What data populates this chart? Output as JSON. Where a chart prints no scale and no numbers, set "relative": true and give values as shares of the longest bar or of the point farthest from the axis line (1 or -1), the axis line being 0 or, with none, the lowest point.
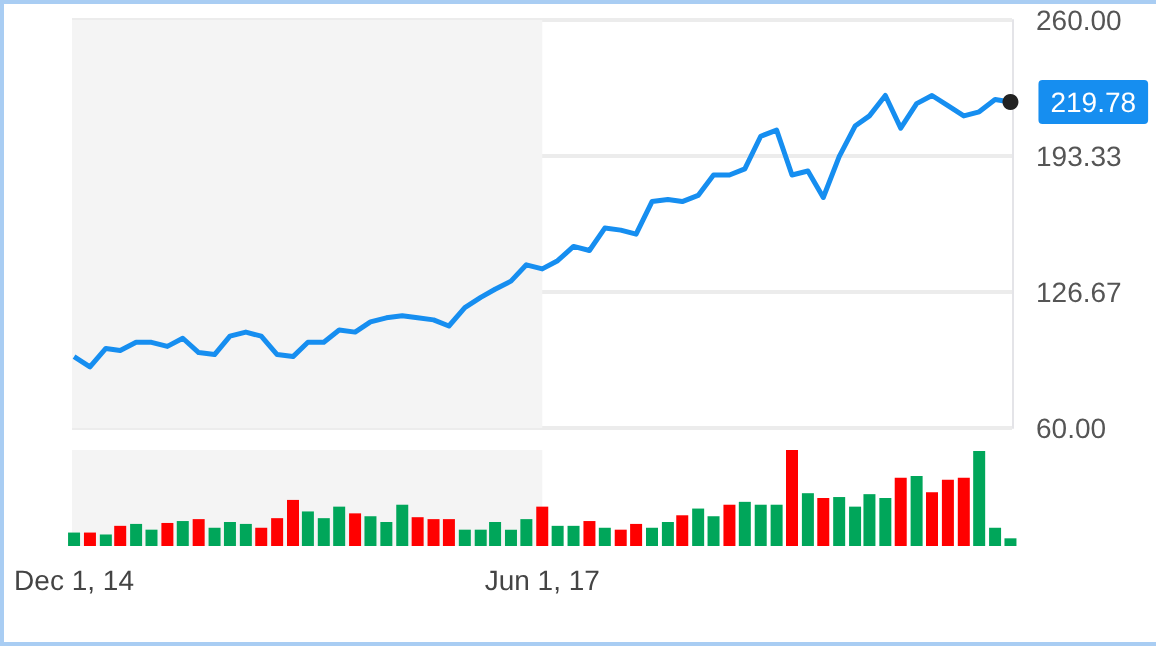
{
  "chart_data": [
    {
      "type": "line",
      "x": [
        "2014-12",
        "2015-01",
        "2015-02",
        "2015-03",
        "2015-04",
        "2015-05",
        "2015-06",
        "2015-07",
        "2015-08",
        "2015-09",
        "2015-10",
        "2015-11",
        "2015-12",
        "2016-01",
        "2016-02",
        "2016-03",
        "2016-04",
        "2016-05",
        "2016-06",
        "2016-07",
        "2016-08",
        "2016-09",
        "2016-10",
        "2016-11",
        "2016-12",
        "2017-01",
        "2017-02",
        "2017-03",
        "2017-04",
        "2017-05",
        "2017-06",
        "2017-07",
        "2017-08",
        "2017-09",
        "2017-10",
        "2017-11",
        "2017-12",
        "2018-01",
        "2018-02",
        "2018-03",
        "2018-04",
        "2018-05",
        "2018-06",
        "2018-07",
        "2018-08",
        "2018-09",
        "2018-10",
        "2018-11",
        "2018-12",
        "2019-01",
        "2019-02",
        "2019-03",
        "2019-04",
        "2019-05",
        "2019-06",
        "2019-07",
        "2019-08",
        "2019-09",
        "2019-10",
        "2019-11",
        "2019-12"
      ],
      "series": [
        {
          "color": "#168ef0",
          "values": [
            95,
            90,
            99,
            98,
            102,
            102,
            100,
            104,
            97,
            96,
            105,
            107,
            105,
            96,
            95,
            102,
            102,
            108,
            107,
            112,
            114,
            115,
            114,
            113,
            110,
            119,
            124,
            128,
            132,
            140,
            138,
            142,
            149,
            147,
            158,
            157,
            155,
            171,
            172,
            171,
            174,
            184,
            184,
            187,
            203,
            206,
            184,
            186,
            173,
            193,
            208,
            213,
            223,
            207,
            219,
            223,
            218,
            213,
            215,
            221,
            219.78
          ]
        }
      ],
      "xlim": [
        "2014-11-27",
        "2019-12-04"
      ],
      "ylim": [
        60,
        260
      ],
      "yticks": [
        {
          "value": 60,
          "label": "60.00"
        },
        {
          "value": 126.67,
          "label": "126.67"
        },
        {
          "value": 193.33,
          "label": "193.33"
        },
        {
          "value": 260,
          "label": "260.00"
        }
      ],
      "annotations": [
        {
          "text": "219.78",
          "x": "2019-12",
          "y": 219.78
        }
      ],
      "bands": [
        {
          "axis": "x",
          "from": "2014-11-27",
          "to": "2017-06-01",
          "color": "#f4f4f4"
        }
      ],
      "grid": "y",
      "marker": "none",
      "tick_labels": "y"
    },
    {
      "type": "bar",
      "relative": true,
      "x": [
        "2014-12",
        "2015-01",
        "2015-02",
        "2015-03",
        "2015-04",
        "2015-05",
        "2015-06",
        "2015-07",
        "2015-08",
        "2015-09",
        "2015-10",
        "2015-11",
        "2015-12",
        "2016-01",
        "2016-02",
        "2016-03",
        "2016-04",
        "2016-05",
        "2016-06",
        "2016-07",
        "2016-08",
        "2016-09",
        "2016-10",
        "2016-11",
        "2016-12",
        "2017-01",
        "2017-02",
        "2017-03",
        "2017-04",
        "2017-05",
        "2017-06",
        "2017-07",
        "2017-08",
        "2017-09",
        "2017-10",
        "2017-11",
        "2017-12",
        "2018-01",
        "2018-02",
        "2018-03",
        "2018-04",
        "2018-05",
        "2018-06",
        "2018-07",
        "2018-08",
        "2018-09",
        "2018-10",
        "2018-11",
        "2018-12",
        "2019-01",
        "2019-02",
        "2019-03",
        "2019-04",
        "2019-05",
        "2019-06",
        "2019-07",
        "2019-08",
        "2019-09",
        "2019-10",
        "2019-11",
        "2019-12"
      ],
      "series": [
        {
          "values": [
            0.14,
            0.14,
            0.12,
            0.21,
            0.23,
            0.17,
            0.24,
            0.26,
            0.28,
            0.19,
            0.25,
            0.23,
            0.19,
            0.29,
            0.48,
            0.36,
            0.29,
            0.41,
            0.34,
            0.31,
            0.25,
            0.43,
            0.3,
            0.28,
            0.28,
            0.17,
            0.17,
            0.25,
            0.17,
            0.28,
            0.41,
            0.21,
            0.21,
            0.26,
            0.19,
            0.17,
            0.23,
            0.19,
            0.25,
            0.32,
            0.39,
            0.31,
            0.43,
            0.46,
            0.43,
            0.43,
            1,
            0.55,
            0.5,
            0.51,
            0.41,
            0.54,
            0.5,
            0.71,
            0.73,
            0.56,
            0.69,
            0.71,
            0.99,
            0.19,
            0.08
          ],
          "colors": [
            "#00a65a",
            "#ff0000",
            "#00a65a",
            "#ff0000",
            "#00a65a",
            "#00a65a",
            "#ff0000",
            "#00a65a",
            "#ff0000",
            "#00a65a",
            "#00a65a",
            "#00a65a",
            "#ff0000",
            "#ff0000",
            "#ff0000",
            "#00a65a",
            "#00a65a",
            "#00a65a",
            "#ff0000",
            "#00a65a",
            "#00a65a",
            "#00a65a",
            "#ff0000",
            "#ff0000",
            "#ff0000",
            "#00a65a",
            "#00a65a",
            "#00a65a",
            "#00a65a",
            "#00a65a",
            "#ff0000",
            "#00a65a",
            "#00a65a",
            "#ff0000",
            "#00a65a",
            "#ff0000",
            "#ff0000",
            "#00a65a",
            "#00a65a",
            "#ff0000",
            "#00a65a",
            "#00a65a",
            "#ff0000",
            "#00a65a",
            "#00a65a",
            "#00a65a",
            "#ff0000",
            "#00a65a",
            "#ff0000",
            "#00a65a",
            "#00a65a",
            "#00a65a",
            "#00a65a",
            "#ff0000",
            "#00a65a",
            "#ff0000",
            "#ff0000",
            "#ff0000",
            "#00a65a",
            "#00a65a",
            "#00a65a"
          ]
        }
      ],
      "xlim": [
        "2014-11-27",
        "2019-12-04"
      ],
      "xticks": [
        {
          "value": "2014-12-01",
          "label": "Dec 1, 14"
        },
        {
          "value": "2017-06-01",
          "label": "Jun 1, 17"
        }
      ],
      "bands": [
        {
          "axis": "x",
          "from": "2014-11-27",
          "to": "2017-06-01",
          "color": "#f4f4f4"
        }
      ],
      "grid": false,
      "tick_labels": "x"
    }
  ]
}
